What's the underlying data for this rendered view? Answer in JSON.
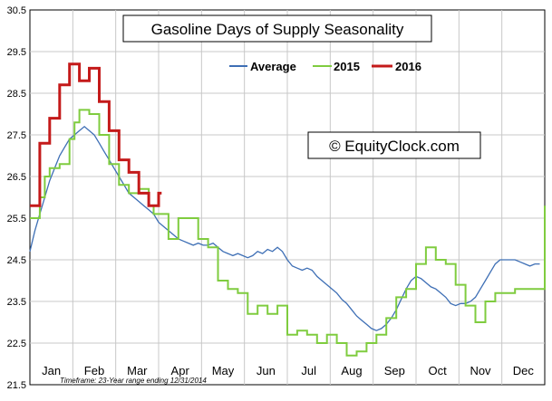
{
  "chart_data": {
    "type": "line",
    "title": "Gasoline Days of Supply Seasonality",
    "watermark": "© EquityClock.com",
    "footnote": "Timeframe: 23-Year range ending 12/31/2014",
    "ylim": [
      21.5,
      30.5
    ],
    "yticks": [
      "30.5",
      "29.5",
      "28.5",
      "27.5",
      "26.5",
      "25.5",
      "24.5",
      "23.5",
      "22.5",
      "21.5"
    ],
    "months": [
      "Jan",
      "Feb",
      "Mar",
      "Apr",
      "May",
      "Jun",
      "Jul",
      "Aug",
      "Sep",
      "Oct",
      "Nov",
      "Dec"
    ],
    "grid": true,
    "legend_position": "top-right",
    "x_unit": "week-of-year (0-52)",
    "series": [
      {
        "name": "Average",
        "color": "#3E6FB5",
        "step": false,
        "points": [
          [
            0,
            24.7
          ],
          [
            0.5,
            25.2
          ],
          [
            1,
            25.6
          ],
          [
            1.5,
            26.0
          ],
          [
            2,
            26.4
          ],
          [
            2.5,
            26.7
          ],
          [
            3,
            27.0
          ],
          [
            3.5,
            27.2
          ],
          [
            4,
            27.4
          ],
          [
            4.5,
            27.5
          ],
          [
            5,
            27.6
          ],
          [
            5.5,
            27.7
          ],
          [
            6,
            27.6
          ],
          [
            6.5,
            27.5
          ],
          [
            7,
            27.3
          ],
          [
            7.5,
            27.1
          ],
          [
            8,
            26.9
          ],
          [
            8.5,
            26.7
          ],
          [
            9,
            26.5
          ],
          [
            9.5,
            26.3
          ],
          [
            10,
            26.1
          ],
          [
            10.5,
            26.0
          ],
          [
            11,
            25.9
          ],
          [
            11.5,
            25.8
          ],
          [
            12,
            25.7
          ],
          [
            12.5,
            25.6
          ],
          [
            13,
            25.4
          ],
          [
            13.5,
            25.3
          ],
          [
            14,
            25.2
          ],
          [
            14.5,
            25.1
          ],
          [
            15,
            25.0
          ],
          [
            15.5,
            24.95
          ],
          [
            16,
            24.9
          ],
          [
            16.5,
            24.85
          ],
          [
            17,
            24.9
          ],
          [
            17.5,
            24.85
          ],
          [
            18,
            24.85
          ],
          [
            18.5,
            24.9
          ],
          [
            19,
            24.8
          ],
          [
            19.5,
            24.7
          ],
          [
            20,
            24.65
          ],
          [
            20.5,
            24.6
          ],
          [
            21,
            24.65
          ],
          [
            21.5,
            24.6
          ],
          [
            22,
            24.55
          ],
          [
            22.5,
            24.6
          ],
          [
            23,
            24.7
          ],
          [
            23.5,
            24.65
          ],
          [
            24,
            24.75
          ],
          [
            24.5,
            24.7
          ],
          [
            25,
            24.8
          ],
          [
            25.5,
            24.7
          ],
          [
            26,
            24.5
          ],
          [
            26.5,
            24.35
          ],
          [
            27,
            24.3
          ],
          [
            27.5,
            24.25
          ],
          [
            28,
            24.3
          ],
          [
            28.5,
            24.25
          ],
          [
            29,
            24.1
          ],
          [
            29.5,
            24.0
          ],
          [
            30,
            23.9
          ],
          [
            30.5,
            23.8
          ],
          [
            31,
            23.7
          ],
          [
            31.5,
            23.55
          ],
          [
            32,
            23.45
          ],
          [
            32.5,
            23.3
          ],
          [
            33,
            23.15
          ],
          [
            33.5,
            23.05
          ],
          [
            34,
            22.95
          ],
          [
            34.5,
            22.85
          ],
          [
            35,
            22.8
          ],
          [
            35.5,
            22.85
          ],
          [
            36,
            22.95
          ],
          [
            36.5,
            23.1
          ],
          [
            37,
            23.3
          ],
          [
            37.5,
            23.55
          ],
          [
            38,
            23.8
          ],
          [
            38.5,
            24.0
          ],
          [
            39,
            24.1
          ],
          [
            39.5,
            24.05
          ],
          [
            40,
            23.95
          ],
          [
            40.5,
            23.85
          ],
          [
            41,
            23.8
          ],
          [
            41.5,
            23.7
          ],
          [
            42,
            23.6
          ],
          [
            42.5,
            23.45
          ],
          [
            43,
            23.4
          ],
          [
            43.5,
            23.45
          ],
          [
            44,
            23.45
          ],
          [
            44.5,
            23.5
          ],
          [
            45,
            23.6
          ],
          [
            45.5,
            23.8
          ],
          [
            46,
            24.0
          ],
          [
            46.5,
            24.2
          ],
          [
            47,
            24.4
          ],
          [
            47.5,
            24.5
          ],
          [
            48,
            24.5
          ],
          [
            48.5,
            24.5
          ],
          [
            49,
            24.5
          ],
          [
            49.5,
            24.45
          ],
          [
            50,
            24.4
          ],
          [
            50.5,
            24.35
          ],
          [
            51,
            24.4
          ],
          [
            51.5,
            24.4
          ]
        ]
      },
      {
        "name": "2015",
        "color": "#7FCC3F",
        "step": true,
        "points": [
          [
            0,
            25.5
          ],
          [
            1,
            26.0
          ],
          [
            1.5,
            26.5
          ],
          [
            2,
            26.7
          ],
          [
            3,
            26.8
          ],
          [
            4,
            27.4
          ],
          [
            4.5,
            27.8
          ],
          [
            5,
            28.1
          ],
          [
            6,
            28.0
          ],
          [
            7,
            27.5
          ],
          [
            8,
            26.8
          ],
          [
            9,
            26.3
          ],
          [
            10,
            26.1
          ],
          [
            11,
            26.2
          ],
          [
            12,
            25.8
          ],
          [
            12.5,
            25.6
          ],
          [
            14,
            25.0
          ],
          [
            15,
            25.5
          ],
          [
            17,
            25.0
          ],
          [
            18,
            24.8
          ],
          [
            19,
            24.0
          ],
          [
            20,
            23.8
          ],
          [
            21,
            23.7
          ],
          [
            22,
            23.2
          ],
          [
            23,
            23.4
          ],
          [
            24,
            23.2
          ],
          [
            25,
            23.4
          ],
          [
            26,
            22.7
          ],
          [
            27,
            22.8
          ],
          [
            28,
            22.7
          ],
          [
            29,
            22.5
          ],
          [
            30,
            22.7
          ],
          [
            31,
            22.5
          ],
          [
            32,
            22.2
          ],
          [
            33,
            22.3
          ],
          [
            34,
            22.5
          ],
          [
            35,
            22.7
          ],
          [
            36,
            23.1
          ],
          [
            37,
            23.6
          ],
          [
            38,
            23.8
          ],
          [
            39,
            24.4
          ],
          [
            40,
            24.8
          ],
          [
            41,
            24.5
          ],
          [
            42,
            24.4
          ],
          [
            43,
            23.9
          ],
          [
            44,
            23.4
          ],
          [
            45,
            23.0
          ],
          [
            46,
            23.5
          ],
          [
            47,
            23.7
          ],
          [
            48,
            23.7
          ],
          [
            49,
            23.8
          ],
          [
            50,
            23.8
          ],
          [
            51,
            23.8
          ],
          [
            52,
            25.8
          ]
        ]
      },
      {
        "name": "2016",
        "color": "#C41A1A",
        "step": true,
        "points": [
          [
            0,
            25.8
          ],
          [
            1,
            27.3
          ],
          [
            2,
            27.9
          ],
          [
            3,
            28.7
          ],
          [
            4,
            29.2
          ],
          [
            5,
            28.8
          ],
          [
            6,
            29.1
          ],
          [
            7,
            28.3
          ],
          [
            8,
            27.6
          ],
          [
            9,
            26.9
          ],
          [
            10,
            26.6
          ],
          [
            11,
            26.1
          ],
          [
            12,
            25.8
          ],
          [
            13,
            26.1
          ],
          [
            13.3,
            26.1
          ]
        ]
      }
    ]
  }
}
